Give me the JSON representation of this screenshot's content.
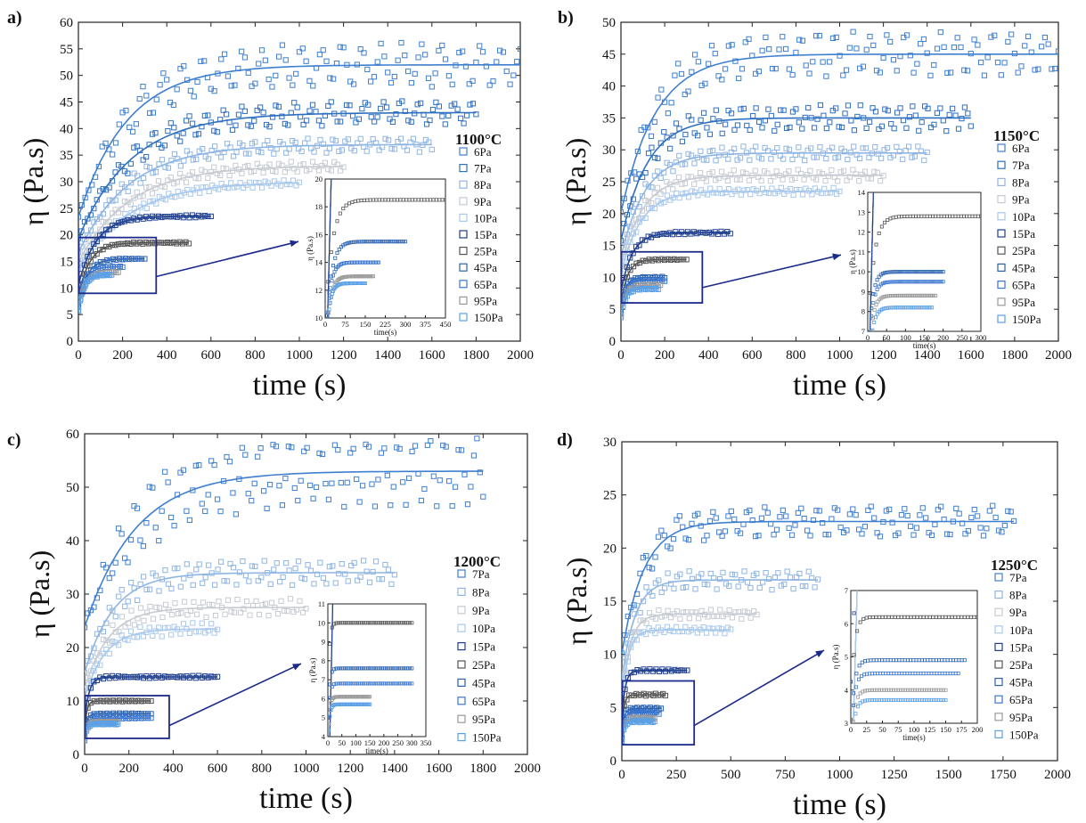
{
  "chart_data": [
    {
      "panel_label": "a)",
      "type": "scatter",
      "temperature": "1100°C",
      "xlabel": "time (s)",
      "ylabel": "η (Pa.s)",
      "xlim": [
        0,
        2000
      ],
      "ylim": [
        0,
        60
      ],
      "xticks": [
        0,
        200,
        400,
        600,
        800,
        1000,
        1200,
        1400,
        1600,
        1800,
        2000
      ],
      "yticks": [
        0,
        5,
        10,
        15,
        20,
        25,
        30,
        35,
        40,
        45,
        50,
        55,
        60
      ],
      "legend": [
        "6Pa",
        "7Pa",
        "8Pa",
        "9Pa",
        "10Pa",
        "15Pa",
        "25Pa",
        "45Pa",
        "65Pa",
        "95Pa",
        "150Pa"
      ],
      "series": [
        {
          "name": "6Pa",
          "color": "#3f7fd0",
          "t_end": 2000,
          "plateau": 52,
          "tau": 220,
          "noise": 3.5,
          "period": 90
        },
        {
          "name": "7Pa",
          "color": "#2f6fc0",
          "t_end": 1800,
          "plateau": 43,
          "tau": 240,
          "noise": 2.0,
          "period": 80
        },
        {
          "name": "8Pa",
          "color": "#8fb5e3",
          "t_end": 1600,
          "plateau": 37,
          "tau": 230,
          "noise": 1.2,
          "period": 60
        },
        {
          "name": "9Pa",
          "color": "#c6cbd2",
          "t_end": 1200,
          "plateau": 33,
          "tau": 230,
          "noise": 0.9,
          "period": 50
        },
        {
          "name": "10Pa",
          "color": "#a8c8ec",
          "t_end": 1000,
          "plateau": 30,
          "tau": 230,
          "noise": 0.6,
          "period": 40
        },
        {
          "name": "15Pa",
          "color": "#1f3f8f",
          "t_end": 600,
          "plateau": 23.5,
          "tau": 80,
          "noise": 0.2,
          "period": 30
        },
        {
          "name": "25Pa",
          "color": "#555555",
          "t_end": 500,
          "plateau": 18.5,
          "tau": 50,
          "noise": 0.15,
          "period": 30
        },
        {
          "name": "45Pa",
          "color": "#2a62b0",
          "t_end": 300,
          "plateau": 15.5,
          "tau": 40,
          "noise": 0.1,
          "period": 30
        },
        {
          "name": "65Pa",
          "color": "#3a76d0",
          "t_end": 200,
          "plateau": 14,
          "tau": 30,
          "noise": 0.1,
          "period": 30
        },
        {
          "name": "95Pa",
          "color": "#9a9a9a",
          "t_end": 180,
          "plateau": 13,
          "tau": 30,
          "noise": 0.1,
          "period": 30
        },
        {
          "name": "150Pa",
          "color": "#5aa0e6",
          "t_end": 150,
          "plateau": 12.5,
          "tau": 25,
          "noise": 0.1,
          "period": 30
        }
      ],
      "zoom_box": {
        "x": [
          0,
          350
        ],
        "y": [
          9,
          19.5
        ]
      },
      "inset": {
        "xlim": [
          0,
          450
        ],
        "ylim": [
          10,
          20
        ],
        "xticks": [
          0,
          75,
          150,
          225,
          300,
          375,
          450
        ],
        "xtick_labels": [
          "0",
          "75",
          "150",
          "225",
          "300",
          "375",
          "450"
        ],
        "yticks": [
          10,
          12,
          14,
          16,
          18,
          20
        ],
        "xlabel": "time(s)",
        "ylabel": "η (Pa.s)"
      }
    },
    {
      "panel_label": "b)",
      "type": "scatter",
      "temperature": "1150°C",
      "xlabel": "time (s)",
      "ylabel": "η (Pa.s)",
      "xlim": [
        0,
        2000
      ],
      "ylim": [
        0,
        50
      ],
      "xticks": [
        0,
        200,
        400,
        600,
        800,
        1000,
        1200,
        1400,
        1600,
        1800,
        2000
      ],
      "yticks": [
        0,
        5,
        10,
        15,
        20,
        25,
        30,
        35,
        40,
        45,
        50
      ],
      "legend": [
        "6Pa",
        "7Pa",
        "8Pa",
        "9Pa",
        "10Pa",
        "15Pa",
        "25Pa",
        "45Pa",
        "65Pa",
        "95Pa",
        "150Pa"
      ],
      "series": [
        {
          "name": "6Pa",
          "color": "#3f7fd0",
          "t_end": 2000,
          "plateau": 45,
          "tau": 160,
          "noise": 3.0,
          "period": 80
        },
        {
          "name": "7Pa",
          "color": "#2f6fc0",
          "t_end": 1600,
          "plateau": 35,
          "tau": 120,
          "noise": 1.8,
          "period": 60
        },
        {
          "name": "8Pa",
          "color": "#8fb5e3",
          "t_end": 1400,
          "plateau": 29.5,
          "tau": 110,
          "noise": 1.0,
          "period": 50
        },
        {
          "name": "9Pa",
          "color": "#c6cbd2",
          "t_end": 1200,
          "plateau": 26,
          "tau": 100,
          "noise": 0.8,
          "period": 50
        },
        {
          "name": "10Pa",
          "color": "#a8c8ec",
          "t_end": 1000,
          "plateau": 23.5,
          "tau": 90,
          "noise": 0.5,
          "period": 40
        },
        {
          "name": "15Pa",
          "color": "#1f3f8f",
          "t_end": 500,
          "plateau": 17,
          "tau": 50,
          "noise": 0.2,
          "period": 30
        },
        {
          "name": "25Pa",
          "color": "#555555",
          "t_end": 300,
          "plateau": 12.8,
          "tau": 30,
          "noise": 0.1,
          "period": 30
        },
        {
          "name": "45Pa",
          "color": "#2a62b0",
          "t_end": 200,
          "plateau": 10,
          "tau": 20,
          "noise": 0.1,
          "period": 30
        },
        {
          "name": "65Pa",
          "color": "#3a76d0",
          "t_end": 200,
          "plateau": 9.5,
          "tau": 20,
          "noise": 0.1,
          "period": 30
        },
        {
          "name": "95Pa",
          "color": "#9a9a9a",
          "t_end": 180,
          "plateau": 8.8,
          "tau": 20,
          "noise": 0.1,
          "period": 30
        },
        {
          "name": "150Pa",
          "color": "#5aa0e6",
          "t_end": 170,
          "plateau": 8.2,
          "tau": 20,
          "noise": 0.1,
          "period": 30
        }
      ],
      "zoom_box": {
        "x": [
          0,
          370
        ],
        "y": [
          6,
          14
        ]
      },
      "inset": {
        "xlim": [
          0,
          300
        ],
        "ylim": [
          7,
          14
        ],
        "xticks": [
          0,
          50,
          100,
          150,
          200,
          250,
          300
        ],
        "xtick_labels": [
          "0",
          "50",
          "100",
          "150",
          "200",
          "250",
          "300"
        ],
        "yticks": [
          7,
          8,
          9,
          10,
          11,
          12,
          13,
          14
        ],
        "xlabel": "time(s)",
        "ylabel": "η (Pa.s)"
      }
    },
    {
      "panel_label": "c)",
      "type": "scatter",
      "temperature": "1200°C",
      "xlabel": "time (s)",
      "ylabel": "η (Pa.s)",
      "xlim": [
        0,
        2000
      ],
      "ylim": [
        0,
        60
      ],
      "xticks": [
        0,
        200,
        400,
        600,
        800,
        1000,
        1200,
        1400,
        1600,
        1800,
        2000
      ],
      "yticks": [
        0,
        10,
        20,
        30,
        40,
        50,
        60
      ],
      "legend": [
        "7Pa",
        "8Pa",
        "9Pa",
        "10Pa",
        "15Pa",
        "25Pa",
        "45Pa",
        "65Pa",
        "95Pa",
        "150Pa"
      ],
      "series": [
        {
          "name": "7Pa",
          "color": "#3f7fd0",
          "t_end": 1800,
          "plateau": 53,
          "tau": 230,
          "noise": 5.5,
          "period": 70
        },
        {
          "name": "8Pa",
          "color": "#8fb5e3",
          "t_end": 1400,
          "plateau": 34,
          "tau": 130,
          "noise": 2.0,
          "period": 50
        },
        {
          "name": "9Pa",
          "color": "#c6cbd2",
          "t_end": 1000,
          "plateau": 27.5,
          "tau": 110,
          "noise": 1.5,
          "period": 40
        },
        {
          "name": "10Pa",
          "color": "#a8c8ec",
          "t_end": 600,
          "plateau": 23.5,
          "tau": 90,
          "noise": 1.0,
          "period": 40
        },
        {
          "name": "15Pa",
          "color": "#1f3f8f",
          "t_end": 600,
          "plateau": 14.5,
          "tau": 20,
          "noise": 0.2,
          "period": 30
        },
        {
          "name": "25Pa",
          "color": "#555555",
          "t_end": 300,
          "plateau": 10,
          "tau": 10,
          "noise": 0.1,
          "period": 30
        },
        {
          "name": "45Pa",
          "color": "#2a62b0",
          "t_end": 300,
          "plateau": 7.6,
          "tau": 10,
          "noise": 0.1,
          "period": 30
        },
        {
          "name": "65Pa",
          "color": "#3a76d0",
          "t_end": 300,
          "plateau": 6.8,
          "tau": 10,
          "noise": 0.1,
          "period": 30
        },
        {
          "name": "95Pa",
          "color": "#9a9a9a",
          "t_end": 150,
          "plateau": 6.1,
          "tau": 10,
          "noise": 0.1,
          "period": 30
        },
        {
          "name": "150Pa",
          "color": "#5aa0e6",
          "t_end": 150,
          "plateau": 5.7,
          "tau": 10,
          "noise": 0.1,
          "period": 30
        }
      ],
      "zoom_box": {
        "x": [
          0,
          380
        ],
        "y": [
          3,
          11
        ]
      },
      "inset": {
        "xlim": [
          0,
          35
        ],
        "ylim": [
          4,
          11
        ],
        "xticks": [
          0,
          5,
          10,
          15,
          20,
          25,
          30,
          35
        ],
        "xtick_labels": [
          "0",
          "50",
          "100",
          "150",
          "200",
          "250",
          "300",
          "350"
        ],
        "yticks": [
          4,
          5,
          6,
          7,
          8,
          9,
          10,
          11
        ],
        "xlabel": "time(s)",
        "ylabel": "η (Pa.s)"
      }
    },
    {
      "panel_label": "d)",
      "type": "scatter",
      "temperature": "1250°C",
      "xlabel": "time (s)",
      "ylabel": "η (Pa.s)",
      "xlim": [
        0,
        2000
      ],
      "ylim": [
        0,
        30
      ],
      "xticks": [
        0,
        250,
        500,
        750,
        1000,
        1250,
        1500,
        1750,
        2000
      ],
      "yticks": [
        0,
        5,
        10,
        15,
        20,
        25,
        30
      ],
      "legend": [
        "7Pa",
        "8Pa",
        "9Pa",
        "10Pa",
        "15Pa",
        "25Pa",
        "45Pa",
        "65Pa",
        "95Pa",
        "150Pa"
      ],
      "series": [
        {
          "name": "7Pa",
          "color": "#3f7fd0",
          "t_end": 1800,
          "plateau": 22.5,
          "tau": 100,
          "noise": 1.3,
          "period": 80
        },
        {
          "name": "8Pa",
          "color": "#8fb5e3",
          "t_end": 900,
          "plateau": 17,
          "tau": 60,
          "noise": 0.8,
          "period": 50
        },
        {
          "name": "9Pa",
          "color": "#c6cbd2",
          "t_end": 620,
          "plateau": 13.8,
          "tau": 40,
          "noise": 0.4,
          "period": 40
        },
        {
          "name": "10Pa",
          "color": "#a8c8ec",
          "t_end": 500,
          "plateau": 12.3,
          "tau": 30,
          "noise": 0.3,
          "period": 40
        },
        {
          "name": "15Pa",
          "color": "#1f3f8f",
          "t_end": 300,
          "plateau": 8.5,
          "tau": 15,
          "noise": 0.1,
          "period": 30
        },
        {
          "name": "25Pa",
          "color": "#555555",
          "t_end": 200,
          "plateau": 6.2,
          "tau": 10,
          "noise": 0.1,
          "period": 30
        },
        {
          "name": "45Pa",
          "color": "#2a62b0",
          "t_end": 180,
          "plateau": 4.9,
          "tau": 10,
          "noise": 0.1,
          "period": 30
        },
        {
          "name": "65Pa",
          "color": "#3a76d0",
          "t_end": 170,
          "plateau": 4.5,
          "tau": 10,
          "noise": 0.1,
          "period": 30
        },
        {
          "name": "95Pa",
          "color": "#9a9a9a",
          "t_end": 150,
          "plateau": 4.0,
          "tau": 10,
          "noise": 0.1,
          "period": 30
        },
        {
          "name": "150Pa",
          "color": "#5aa0e6",
          "t_end": 150,
          "plateau": 3.7,
          "tau": 10,
          "noise": 0.1,
          "period": 30
        }
      ],
      "zoom_box": {
        "x": [
          0,
          330
        ],
        "y": [
          1.5,
          7.5
        ]
      },
      "inset": {
        "xlim": [
          0,
          200
        ],
        "ylim": [
          3,
          7
        ],
        "xticks": [
          0,
          25,
          50,
          75,
          100,
          125,
          150,
          175,
          200
        ],
        "xtick_labels": [
          "0",
          "25",
          "50",
          "75",
          "100",
          "125",
          "150",
          "175",
          "200"
        ],
        "yticks": [
          3,
          4,
          5,
          6,
          7
        ],
        "xlabel": "time(s)",
        "ylabel": "η (Pa.s)"
      }
    }
  ]
}
